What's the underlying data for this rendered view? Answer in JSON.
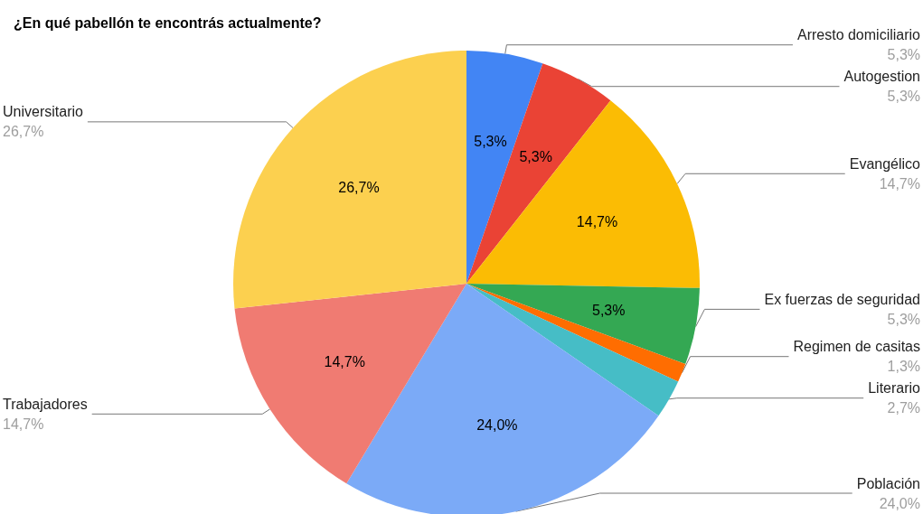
{
  "chart_data": {
    "type": "pie",
    "title": "¿En qué pabellón te encontrás actualmente?",
    "categories": [
      "Arresto domiciliario",
      "Autogestion",
      "Evangélico",
      "Ex fuerzas de seguridad",
      "Regimen de casitas",
      "Literario",
      "Población",
      "Trabajadores",
      "Universitario"
    ],
    "values": [
      5.3,
      5.3,
      14.7,
      5.3,
      1.3,
      2.7,
      24.0,
      14.7,
      26.7
    ],
    "value_labels": [
      "5,3%",
      "5,3%",
      "14,7%",
      "5,3%",
      "1,3%",
      "2,7%",
      "24,0%",
      "14,7%",
      "26,7%"
    ],
    "colors": [
      "#4285f4",
      "#ea4335",
      "#fbbc04",
      "#34a853",
      "#ff6d01",
      "#46bdc6",
      "#7baaf7",
      "#f07b72",
      "#fcd04f"
    ],
    "legend": false
  }
}
